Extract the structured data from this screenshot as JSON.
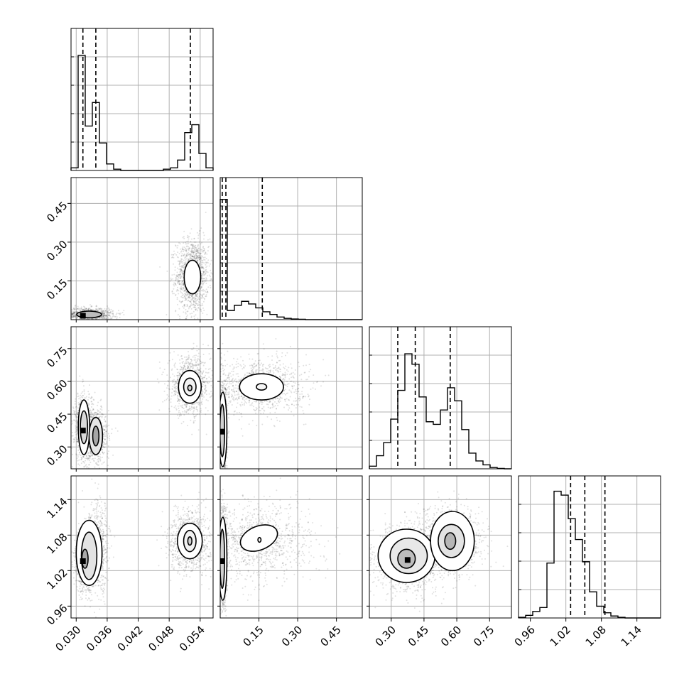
{
  "chart_data": {
    "type": "corner",
    "grid": true,
    "params": [
      {
        "range": [
          0.029,
          0.0565
        ],
        "ticks": [
          0.03,
          0.036,
          0.042,
          0.048,
          0.054
        ],
        "tick_labels": [
          "0.030",
          "0.036",
          "0.042",
          "0.048",
          "0.054"
        ],
        "hist_max": 1.0,
        "hist": [
          0.02,
          0.88,
          0.34,
          0.52,
          0.21,
          0.05,
          0.01,
          0,
          0,
          0,
          0,
          0,
          0,
          0.01,
          0.02,
          0.08,
          0.29,
          0.35,
          0.13,
          0.02
        ],
        "quantiles": [
          0.0313,
          0.0338,
          0.0521
        ]
      },
      {
        "range": [
          0.0,
          0.55
        ],
        "ticks": [
          0.15,
          0.3,
          0.45
        ],
        "tick_labels": [
          "0.15",
          "0.30",
          "0.45"
        ],
        "hist_max": 1.0,
        "hist": [
          0.92,
          0.07,
          0.11,
          0.14,
          0.12,
          0.09,
          0.06,
          0.04,
          0.02,
          0.01,
          0.005,
          0.003,
          0,
          0,
          0,
          0,
          0,
          0,
          0,
          0
        ],
        "quantiles": [
          0.008,
          0.022,
          0.163
        ]
      },
      {
        "range": [
          0.2,
          0.85
        ],
        "ticks": [
          0.3,
          0.45,
          0.6,
          0.75
        ],
        "tick_labels": [
          "0.30",
          "0.45",
          "0.60",
          "0.75"
        ],
        "hist_max": 1.0,
        "hist": [
          0.02,
          0.1,
          0.2,
          0.38,
          0.6,
          0.88,
          0.8,
          0.55,
          0.36,
          0.34,
          0.45,
          0.62,
          0.52,
          0.3,
          0.12,
          0.06,
          0.03,
          0.01,
          0.003,
          0
        ],
        "quantiles": [
          0.33,
          0.41,
          0.57
        ]
      },
      {
        "range": [
          0.94,
          1.18
        ],
        "ticks": [
          0.96,
          1.02,
          1.08,
          1.14
        ],
        "tick_labels": [
          "0.96",
          "1.02",
          "1.08",
          "1.14"
        ],
        "hist_max": 1.0,
        "hist": [
          0.005,
          0.02,
          0.05,
          0.08,
          0.42,
          0.97,
          0.94,
          0.76,
          0.6,
          0.43,
          0.2,
          0.09,
          0.04,
          0.015,
          0.005,
          0,
          0,
          0,
          0,
          0
        ],
        "quantiles": [
          1.028,
          1.052,
          1.086
        ]
      }
    ],
    "pairs": [
      {
        "x": 0,
        "y": 1,
        "modes": [
          {
            "center": [
              0.0525,
              0.17
            ],
            "sd": [
              0.0012,
              0.055
            ],
            "weight": 0.6
          },
          {
            "center": [
              0.0325,
              0.02
            ],
            "sd": [
              0.0018,
              0.01
            ],
            "weight": 0.4
          }
        ],
        "contours": [
          {
            "center": [
              0.0525,
              0.165
            ],
            "rx": 0.0016,
            "ry": 0.065,
            "fill": "#ffffff"
          },
          {
            "center": [
              0.0325,
              0.02
            ],
            "rx": 0.0024,
            "ry": 0.013,
            "fill": "#bdbdbd"
          }
        ],
        "peaks": [
          [
            0.0313,
            0.015
          ]
        ]
      },
      {
        "x": 0,
        "y": 2,
        "modes": [
          {
            "center": [
              0.052,
              0.58
            ],
            "sd": [
              0.0015,
              0.05
            ],
            "weight": 0.45
          },
          {
            "center": [
              0.0315,
              0.39
            ],
            "sd": [
              0.0007,
              0.06
            ],
            "weight": 0.3
          },
          {
            "center": [
              0.0338,
              0.35
            ],
            "sd": [
              0.001,
              0.05
            ],
            "weight": 0.25
          }
        ],
        "contours": [
          {
            "center": [
              0.052,
              0.575
            ],
            "rx": 0.0022,
            "ry": 0.075,
            "fill": "#ffffff"
          },
          {
            "center": [
              0.052,
              0.575
            ],
            "rx": 0.0012,
            "ry": 0.04,
            "fill": "#f2f2f2"
          },
          {
            "center": [
              0.052,
              0.57
            ],
            "rx": 0.0004,
            "ry": 0.013,
            "fill": "#cfcfcf"
          },
          {
            "center": [
              0.0315,
              0.39
            ],
            "rx": 0.0011,
            "ry": 0.125,
            "fill": "#ffffff"
          },
          {
            "center": [
              0.0315,
              0.39
            ],
            "rx": 0.0007,
            "ry": 0.075,
            "fill": "#d9d9d9"
          },
          {
            "center": [
              0.0338,
              0.35
            ],
            "rx": 0.0013,
            "ry": 0.085,
            "fill": "#e6e6e6"
          },
          {
            "center": [
              0.0338,
              0.35
            ],
            "rx": 0.0006,
            "ry": 0.045,
            "fill": "#a6a6a6"
          }
        ],
        "peaks": [
          [
            0.0313,
            0.375
          ]
        ]
      },
      {
        "x": 1,
        "y": 2,
        "modes": [
          {
            "center": [
              0.15,
              0.58
            ],
            "sd": [
              0.07,
              0.05
            ],
            "weight": 0.45
          },
          {
            "center": [
              0.012,
              0.38
            ],
            "sd": [
              0.005,
              0.08
            ],
            "weight": 0.55
          }
        ],
        "contours": [
          {
            "center": [
              0.16,
              0.575
            ],
            "rx": 0.085,
            "ry": 0.06,
            "fill": "#ffffff"
          },
          {
            "center": [
              0.16,
              0.575
            ],
            "rx": 0.02,
            "ry": 0.015,
            "fill": "#f5f5f5"
          },
          {
            "center": [
              0.01,
              0.38
            ],
            "rx": 0.016,
            "ry": 0.17,
            "fill": "#ffffff"
          },
          {
            "center": [
              0.008,
              0.375
            ],
            "rx": 0.009,
            "ry": 0.12,
            "fill": "#d0d0d0"
          }
        ],
        "peaks": [
          [
            0.004,
            0.37
          ]
        ]
      },
      {
        "x": 0,
        "y": 3,
        "modes": [
          {
            "center": [
              0.052,
              1.07
            ],
            "sd": [
              0.0015,
              0.02
            ],
            "weight": 0.45
          },
          {
            "center": [
              0.0318,
              1.035
            ],
            "sd": [
              0.0009,
              0.02
            ],
            "weight": 0.3
          },
          {
            "center": [
              0.0342,
              1.06
            ],
            "sd": [
              0.0009,
              0.03
            ],
            "weight": 0.25
          }
        ],
        "contours": [
          {
            "center": [
              0.052,
              1.07
            ],
            "rx": 0.0024,
            "ry": 0.03,
            "fill": "#ffffff"
          },
          {
            "center": [
              0.052,
              1.07
            ],
            "rx": 0.0012,
            "ry": 0.018,
            "fill": "#f2f2f2"
          },
          {
            "center": [
              0.052,
              1.07
            ],
            "rx": 0.0004,
            "ry": 0.007,
            "fill": "#cfcfcf"
          },
          {
            "center": [
              0.0325,
              1.05
            ],
            "rx": 0.0025,
            "ry": 0.055,
            "fill": "#ffffff"
          },
          {
            "center": [
              0.0325,
              1.045
            ],
            "rx": 0.0015,
            "ry": 0.04,
            "fill": "#e3e3e3"
          },
          {
            "center": [
              0.0317,
              1.04
            ],
            "rx": 0.0006,
            "ry": 0.016,
            "fill": "#a9a9a9"
          }
        ],
        "peaks": [
          [
            0.0313,
            1.036
          ]
        ]
      },
      {
        "x": 1,
        "y": 3,
        "modes": [
          {
            "center": [
              0.15,
              1.07
            ],
            "sd": [
              0.08,
              0.025
            ],
            "weight": 0.45
          },
          {
            "center": [
              0.012,
              1.04
            ],
            "sd": [
              0.005,
              0.03
            ],
            "weight": 0.55
          }
        ],
        "contours": [
          {
            "center": [
              0.15,
              1.075
            ],
            "rx": 0.075,
            "ry": 0.02,
            "fill": "#ffffff",
            "rot": -22
          },
          {
            "center": [
              0.152,
              1.072
            ],
            "rx": 0.006,
            "ry": 0.004,
            "fill": "#f5f5f5"
          },
          {
            "center": [
              0.01,
              1.04
            ],
            "rx": 0.016,
            "ry": 0.07,
            "fill": "#ffffff"
          },
          {
            "center": [
              0.008,
              1.04
            ],
            "rx": 0.009,
            "ry": 0.05,
            "fill": "#d0d0d0"
          }
        ],
        "peaks": [
          [
            0.004,
            1.036
          ]
        ]
      },
      {
        "x": 2,
        "y": 3,
        "modes": [
          {
            "center": [
              0.37,
              1.04
            ],
            "sd": [
              0.06,
              0.022
            ],
            "weight": 0.55
          },
          {
            "center": [
              0.57,
              1.07
            ],
            "sd": [
              0.06,
              0.022
            ],
            "weight": 0.45
          }
        ],
        "contours": [
          {
            "center": [
              0.37,
              1.045
            ],
            "rx": 0.13,
            "ry": 0.045,
            "fill": "#ffffff"
          },
          {
            "center": [
              0.58,
              1.07
            ],
            "rx": 0.1,
            "ry": 0.05,
            "fill": "#ffffff"
          },
          {
            "center": [
              0.38,
              1.045
            ],
            "rx": 0.085,
            "ry": 0.03,
            "fill": "#e8e8e8"
          },
          {
            "center": [
              0.575,
              1.07
            ],
            "rx": 0.06,
            "ry": 0.028,
            "fill": "#e3e3e3"
          },
          {
            "center": [
              0.37,
              1.04
            ],
            "rx": 0.04,
            "ry": 0.016,
            "fill": "#bdbdbd"
          },
          {
            "center": [
              0.57,
              1.07
            ],
            "rx": 0.025,
            "ry": 0.014,
            "fill": "#b5b5b5"
          }
        ],
        "peaks": [
          [
            0.375,
            1.038
          ]
        ]
      }
    ]
  }
}
